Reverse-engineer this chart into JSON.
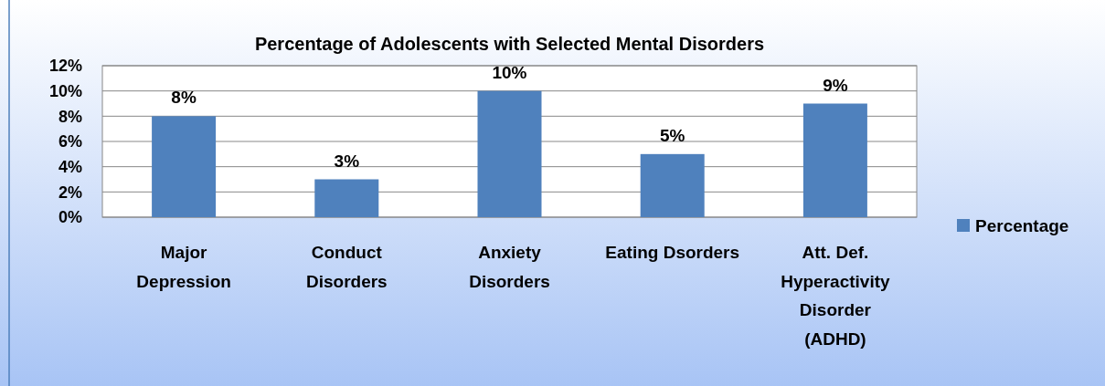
{
  "chart_data": {
    "type": "bar",
    "title": "Percentage of Adolescents with Selected Mental Disorders",
    "categories": [
      "Major Depression",
      "Conduct Disorders",
      "Anxiety Disorders",
      "Eating Dsorders",
      "Att. Def. Hyperactivity Disorder (ADHD)"
    ],
    "series": [
      {
        "name": "Percentage",
        "color": "#4f81bd",
        "values": [
          8,
          3,
          10,
          5,
          9
        ],
        "value_labels": [
          "8%",
          "3%",
          "10%",
          "5%",
          "9%"
        ]
      }
    ],
    "ylim": [
      0,
      12
    ],
    "yticks": [
      {
        "value": 0,
        "label": "0%"
      },
      {
        "value": 2,
        "label": "2%"
      },
      {
        "value": 4,
        "label": "4%"
      },
      {
        "value": 6,
        "label": "6%"
      },
      {
        "value": 8,
        "label": "8%"
      },
      {
        "value": 10,
        "label": "10%"
      },
      {
        "value": 12,
        "label": "12%"
      }
    ],
    "grid": "y",
    "legend": "right"
  }
}
